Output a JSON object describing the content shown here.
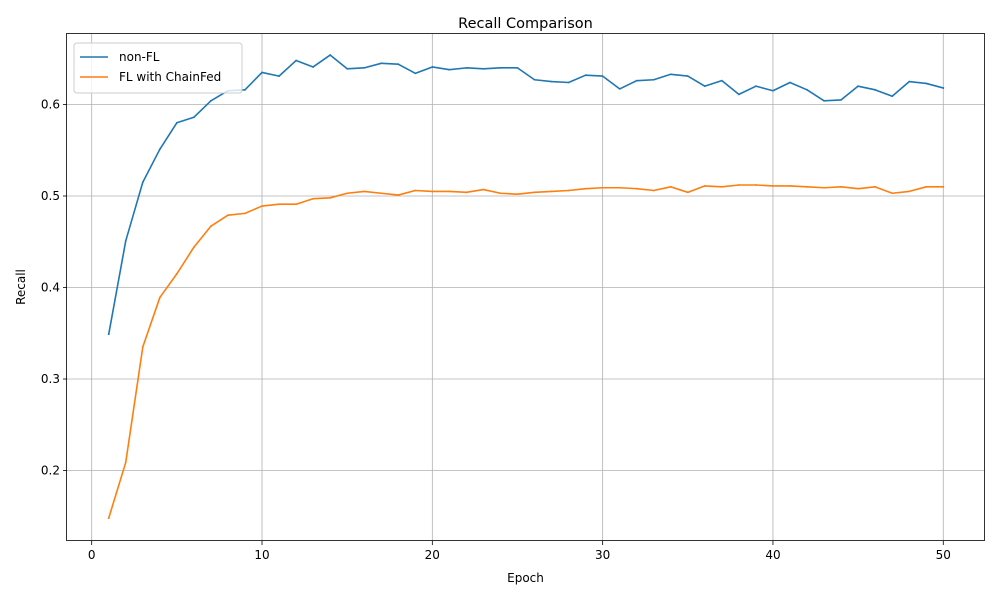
{
  "chart_data": {
    "type": "line",
    "title": "Recall Comparison",
    "xlabel": "Epoch",
    "ylabel": "Recall",
    "xlim": [
      -1.45,
      52.45
    ],
    "ylim": [
      0.123,
      0.677
    ],
    "xticks": [
      0,
      10,
      20,
      30,
      40,
      50
    ],
    "xtick_labels": [
      "0",
      "10",
      "20",
      "30",
      "40",
      "50"
    ],
    "yticks": [
      0.2,
      0.3,
      0.4,
      0.5,
      0.6
    ],
    "ytick_labels": [
      "0.2",
      "0.3",
      "0.4",
      "0.5",
      "0.6"
    ],
    "grid": true,
    "legend_position": "top-left",
    "x": [
      1,
      2,
      3,
      4,
      5,
      6,
      7,
      8,
      9,
      10,
      11,
      12,
      13,
      14,
      15,
      16,
      17,
      18,
      19,
      20,
      21,
      22,
      23,
      24,
      25,
      26,
      27,
      28,
      29,
      30,
      31,
      32,
      33,
      34,
      35,
      36,
      37,
      38,
      39,
      40,
      41,
      42,
      43,
      44,
      45,
      46,
      47,
      48,
      49,
      50
    ],
    "series": [
      {
        "name": "non-FL",
        "color": "#1f77b4",
        "values": [
          0.349,
          0.451,
          0.515,
          0.551,
          0.58,
          0.586,
          0.604,
          0.615,
          0.616,
          0.635,
          0.631,
          0.648,
          0.641,
          0.654,
          0.639,
          0.64,
          0.645,
          0.644,
          0.634,
          0.641,
          0.638,
          0.64,
          0.639,
          0.64,
          0.64,
          0.627,
          0.625,
          0.624,
          0.632,
          0.631,
          0.617,
          0.626,
          0.627,
          0.633,
          0.631,
          0.62,
          0.626,
          0.611,
          0.62,
          0.615,
          0.624,
          0.616,
          0.604,
          0.605,
          0.62,
          0.616,
          0.609,
          0.625,
          0.623,
          0.618
        ]
      },
      {
        "name": "FL with ChainFed",
        "color": "#ff7f0e",
        "values": [
          0.148,
          0.209,
          0.335,
          0.389,
          0.415,
          0.444,
          0.467,
          0.479,
          0.481,
          0.489,
          0.491,
          0.491,
          0.497,
          0.498,
          0.503,
          0.505,
          0.503,
          0.501,
          0.506,
          0.505,
          0.505,
          0.504,
          0.507,
          0.503,
          0.502,
          0.504,
          0.505,
          0.506,
          0.508,
          0.509,
          0.509,
          0.508,
          0.506,
          0.51,
          0.504,
          0.511,
          0.51,
          0.512,
          0.512,
          0.511,
          0.511,
          0.51,
          0.509,
          0.51,
          0.508,
          0.51,
          0.503,
          0.505,
          0.51,
          0.51
        ]
      }
    ]
  }
}
